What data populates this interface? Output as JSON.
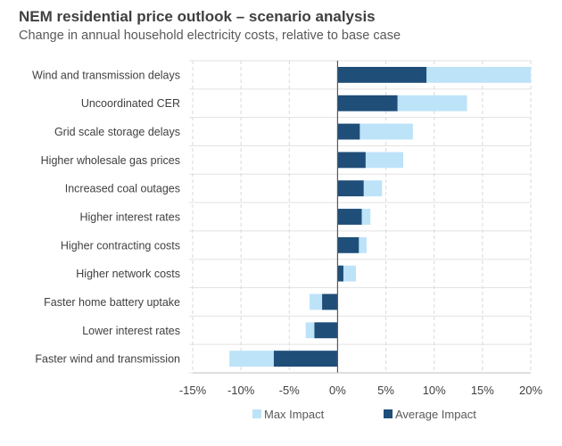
{
  "header": {
    "title": "NEM residential price outlook – scenario analysis",
    "subtitle": "Change in annual household electricity costs, relative to base case"
  },
  "chart_data": {
    "type": "bar",
    "orientation": "horizontal",
    "title": "NEM residential price outlook – scenario analysis",
    "subtitle": "Change in annual household electricity costs, relative to base case",
    "xlabel": "",
    "ylabel": "",
    "xlim": [
      -15,
      20
    ],
    "x_ticks": [
      -15,
      -10,
      -5,
      0,
      5,
      10,
      15,
      20
    ],
    "x_tick_labels": [
      "-15%",
      "-10%",
      "-5%",
      "0%",
      "5%",
      "10%",
      "15%",
      "20%"
    ],
    "grid": true,
    "legend_position": "bottom",
    "categories": [
      "Wind and transmission delays",
      "Uncoordinated CER",
      "Grid scale storage delays",
      "Higher wholesale gas prices",
      "Increased coal outages",
      "Higher interest rates",
      "Higher contracting costs",
      "Higher network costs",
      "Faster home battery uptake",
      "Lower interest rates",
      "Faster wind and transmission"
    ],
    "series": [
      {
        "name": "Max Impact",
        "color": "#bde3f8",
        "values": [
          20.0,
          13.4,
          7.8,
          6.8,
          4.6,
          3.4,
          3.0,
          1.9,
          -2.9,
          -3.3,
          -11.2
        ]
      },
      {
        "name": "Average Impact",
        "color": "#1f4e79",
        "values": [
          9.2,
          6.2,
          2.3,
          2.9,
          2.7,
          2.5,
          2.2,
          0.6,
          -1.6,
          -2.4,
          -6.6
        ]
      }
    ]
  }
}
